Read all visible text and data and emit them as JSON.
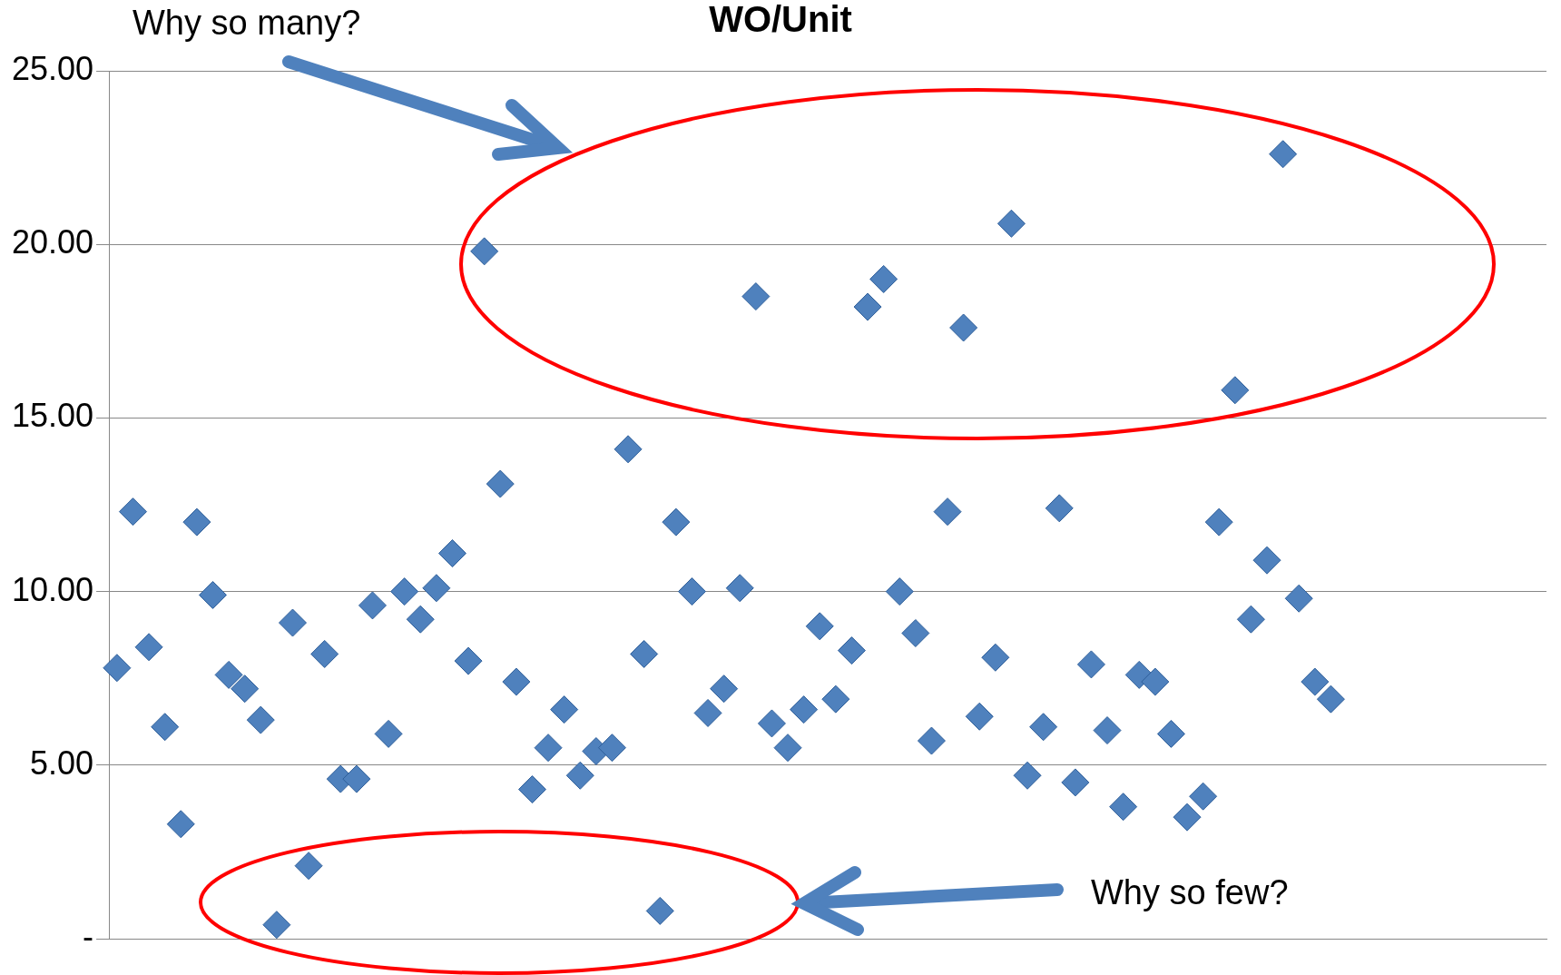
{
  "chart_data": {
    "type": "scatter",
    "title": "WO/Unit",
    "annotations": [
      "Why so many?",
      "Why so few?"
    ],
    "categories": [
      null,
      null,
      null,
      null,
      null,
      null,
      null,
      null,
      null,
      null,
      null,
      null,
      null,
      null,
      null,
      null,
      null,
      null,
      null,
      null,
      null,
      null,
      null,
      null,
      null,
      null,
      null,
      null,
      null,
      null,
      null,
      null,
      null,
      null,
      null,
      null,
      null,
      null,
      null,
      null,
      null,
      null,
      null,
      null,
      null,
      null,
      null,
      null,
      null,
      null,
      null,
      null,
      null,
      null,
      null,
      null,
      null,
      null,
      null,
      null,
      null,
      null,
      null,
      null,
      null,
      null,
      null,
      null,
      null,
      null,
      null,
      null,
      null,
      null,
      null,
      null,
      null,
      null,
      null,
      null,
      null,
      null,
      null,
      null,
      null,
      null,
      null,
      null,
      null,
      null
    ],
    "series": [
      {
        "color": "#4f81bd",
        "values": [
          7.8,
          12.3,
          8.4,
          6.1,
          3.3,
          12.0,
          9.9,
          7.6,
          7.2,
          6.3,
          0.4,
          9.1,
          2.1,
          8.2,
          4.6,
          4.6,
          9.6,
          5.9,
          10.0,
          9.2,
          10.1,
          11.1,
          8.0,
          19.8,
          13.1,
          7.4,
          4.3,
          5.5,
          6.6,
          4.7,
          5.4,
          5.5,
          14.1,
          8.2,
          0.8,
          12.0,
          10.0,
          6.5,
          7.2,
          10.1,
          18.5,
          6.2,
          5.5,
          6.6,
          9.0,
          6.9,
          8.3,
          18.2,
          19.0,
          10.0,
          8.8,
          5.7,
          12.3,
          17.6,
          6.4,
          8.1,
          20.6,
          4.7,
          6.1,
          12.4,
          4.5,
          7.9,
          6.0,
          3.8,
          7.6,
          7.4,
          5.9,
          3.5,
          4.1,
          12.0,
          15.8,
          9.2,
          10.9,
          22.6,
          9.8,
          7.4,
          6.9,
          null,
          null,
          null,
          null,
          null,
          null,
          null,
          null,
          null,
          null,
          null,
          null,
          null
        ]
      }
    ],
    "ylim": [
      0,
      25
    ],
    "yticks": [
      {
        "value": 0,
        "label": "-"
      },
      {
        "value": 5,
        "label": "5.00"
      },
      {
        "value": 10,
        "label": "10.00"
      },
      {
        "value": 15,
        "label": "15.00"
      },
      {
        "value": 20,
        "label": "20.00"
      },
      {
        "value": 25,
        "label": "25.00"
      }
    ],
    "grid": "y",
    "marker": "diamond",
    "legend": false,
    "tick_labels": "y"
  }
}
